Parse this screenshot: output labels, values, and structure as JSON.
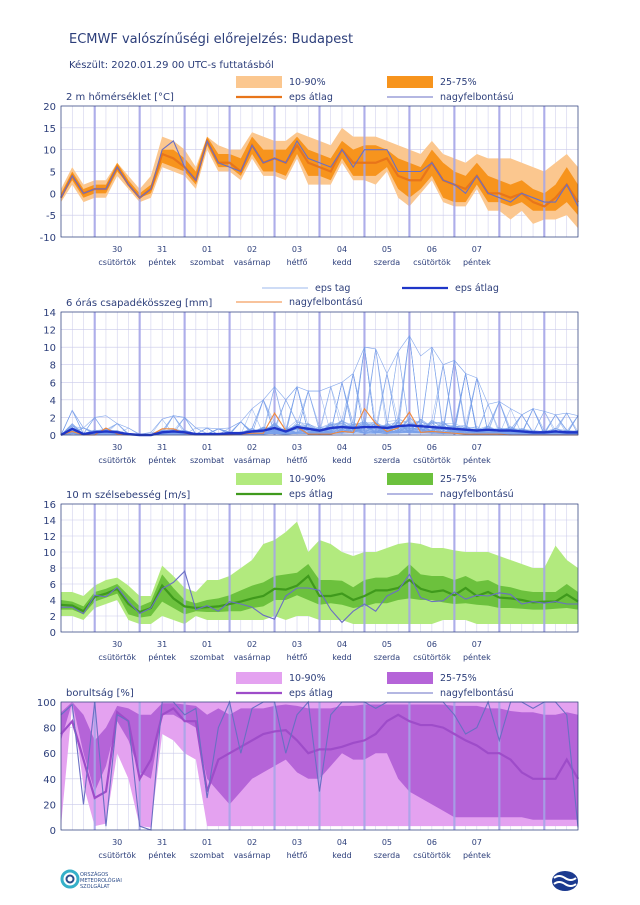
{
  "header": {
    "title": "ECMWF valószínűségi előrejelzés: Budapest",
    "subtitle": "Készült: 2020.01.29 00 UTC-s futtatásból"
  },
  "footer": {
    "left_logo_text": [
      "ORSZÁGOS",
      "METEOROLÓGIAI",
      "SZOLGÁLAT"
    ]
  },
  "colors": {
    "temp_band_outer": "#fbc78f",
    "temp_band_inner": "#f7941d",
    "temp_mean": "#e8751a",
    "hires_line": "#6a6fc4",
    "precip_members": "#5d8fe8",
    "precip_mean": "#1f36c8",
    "precip_hires": "#f0873a",
    "wind_band_outer": "#b2ea7e",
    "wind_band_inner": "#6cc13d",
    "wind_mean": "#3f9a1c",
    "cloud_band_outer": "#e4a2f0",
    "cloud_band_inner": "#b564d8",
    "cloud_mean": "#9e4cc9",
    "grid": "#c9c9ea",
    "day_separator": "#a5a5e8"
  },
  "chart_data": [
    {
      "type": "area",
      "title": "2 m hőmérséklet [°C]",
      "ylim": [
        -10,
        20
      ],
      "yticks": [
        -10,
        -5,
        0,
        5,
        10,
        15,
        20
      ],
      "legend": [
        {
          "label": "10-90%",
          "kind": "band",
          "color": "#fbc78f"
        },
        {
          "label": "25-75%",
          "kind": "band",
          "color": "#f7941d"
        },
        {
          "label": "eps átlag",
          "kind": "line",
          "color": "#e8751a"
        },
        {
          "label": "nagyfelbontású",
          "kind": "line",
          "color": "#6a6fc4"
        }
      ],
      "series": {
        "p10": [
          -2,
          2,
          -2,
          -1,
          -1,
          4,
          1,
          -2,
          -1,
          6,
          5,
          4,
          1,
          10,
          5,
          5,
          3,
          8,
          4,
          4,
          3,
          8,
          2,
          2,
          2,
          7,
          3,
          3,
          2,
          5,
          -1,
          -3,
          0,
          3,
          -2,
          -3,
          -3,
          1,
          -4,
          -4,
          -6,
          -4,
          -7,
          -6,
          -6,
          -5,
          -8
        ],
        "p25": [
          -1,
          3,
          -1,
          0,
          0,
          5,
          2,
          -1,
          0,
          7,
          6,
          5,
          2,
          11,
          6,
          6,
          4,
          9,
          5,
          5,
          4,
          9,
          4,
          4,
          3,
          8,
          4,
          4,
          4,
          6,
          1,
          -1,
          1,
          4,
          -1,
          -2,
          -2,
          2,
          -2,
          -2,
          -3,
          -2,
          -4,
          -4,
          -4,
          -2,
          -5
        ],
        "mean": [
          -1,
          4,
          0,
          1,
          1,
          6,
          2,
          -1,
          1,
          9,
          8,
          6,
          3,
          12,
          7,
          7,
          5,
          11,
          7,
          8,
          7,
          11,
          7,
          6,
          5,
          10,
          7,
          7,
          7,
          8,
          4,
          3,
          3,
          7,
          3,
          2,
          1,
          4,
          0,
          0,
          -1,
          0,
          -2,
          -3,
          -1,
          2,
          -2
        ],
        "p75": [
          0,
          5,
          1,
          2,
          2,
          7,
          3,
          0,
          2,
          10,
          10,
          8,
          5,
          13,
          9,
          9,
          8,
          13,
          10,
          10,
          10,
          13,
          10,
          9,
          8,
          12,
          10,
          11,
          11,
          10,
          8,
          7,
          6,
          10,
          7,
          5,
          4,
          7,
          4,
          3,
          2,
          3,
          1,
          0,
          2,
          6,
          2
        ],
        "p90": [
          1,
          6,
          2,
          3,
          3,
          7,
          4,
          1,
          4,
          13,
          12,
          10,
          6,
          13,
          11,
          10,
          10,
          14,
          13,
          12,
          12,
          14,
          13,
          12,
          11,
          15,
          13,
          13,
          13,
          12,
          11,
          10,
          9,
          12,
          9,
          8,
          7,
          9,
          8,
          8,
          8,
          7,
          6,
          5,
          7,
          9,
          6
        ],
        "hires": [
          -1,
          4,
          0,
          1,
          1,
          6,
          2,
          -1,
          1,
          10,
          12,
          6,
          3,
          12,
          7,
          6,
          5,
          11,
          7,
          8,
          7,
          12,
          8,
          7,
          6,
          10,
          6,
          10,
          10,
          10,
          5,
          5,
          5,
          7,
          3,
          2,
          0,
          4,
          0,
          -1,
          -2,
          0,
          -1,
          -2,
          -2,
          2,
          -3
        ]
      },
      "x_day_labels": [
        {
          "day": "30",
          "weekday": "csütörtök"
        },
        {
          "day": "31",
          "weekday": "péntek"
        },
        {
          "day": "01",
          "weekday": "szombat"
        },
        {
          "day": "02",
          "weekday": "vasárnap"
        },
        {
          "day": "03",
          "weekday": "hétfő"
        },
        {
          "day": "04",
          "weekday": "kedd"
        },
        {
          "day": "05",
          "weekday": "szerda"
        },
        {
          "day": "06",
          "weekday": "csütörtök"
        },
        {
          "day": "07",
          "weekday": "péntek"
        }
      ]
    },
    {
      "type": "line",
      "title": "6 órás csapadékösszeg [mm]",
      "ylim": [
        0,
        14
      ],
      "yticks": [
        0,
        2,
        4,
        6,
        8,
        10,
        12,
        14
      ],
      "legend": [
        {
          "label": "eps tag",
          "kind": "line",
          "color": "#9cb8ee"
        },
        {
          "label": "eps átlag",
          "kind": "line",
          "color": "#1f36c8"
        },
        {
          "label": "nagyfelbontású",
          "kind": "line",
          "color": "#f0873a"
        }
      ],
      "series": {
        "mean": [
          0,
          0.7,
          0.1,
          0.3,
          0.4,
          0.3,
          0.1,
          0,
          0,
          0.3,
          0.4,
          0.3,
          0.1,
          0.1,
          0.1,
          0.2,
          0.2,
          0.4,
          0.5,
          0.8,
          0.4,
          0.9,
          0.7,
          0.5,
          0.8,
          0.9,
          0.8,
          0.9,
          0.9,
          0.8,
          1.0,
          1.1,
          1.0,
          0.9,
          0.8,
          0.7,
          0.6,
          0.5,
          0.6,
          0.5,
          0.5,
          0.4,
          0.3,
          0.3,
          0.4,
          0.3,
          0.3
        ],
        "max_member": [
          0,
          2.8,
          0.8,
          2,
          2.2,
          1.3,
          0.8,
          0.1,
          0.3,
          1.8,
          2.2,
          2,
          0.8,
          0.8,
          0.7,
          0.8,
          1.5,
          3,
          4,
          5.5,
          4,
          5.5,
          5,
          5,
          5.5,
          6,
          7,
          10,
          9.8,
          7,
          9.5,
          11.3,
          9,
          10,
          8,
          8.5,
          7,
          6.5,
          3.5,
          3.8,
          3,
          2.3,
          3,
          2.7,
          2.3,
          2.5,
          2.2
        ],
        "hires": [
          0,
          0.4,
          0,
          0,
          0.8,
          0.1,
          0,
          0,
          0,
          0.7,
          0.7,
          0.2,
          0,
          0,
          0,
          0,
          0.1,
          0.2,
          0.2,
          2.5,
          0.5,
          0.9,
          0.1,
          0.1,
          0.1,
          0.4,
          0.3,
          3.0,
          1.3,
          0.4,
          0.8,
          2.6,
          0.3,
          0.4,
          0.3,
          0.2,
          0.1,
          0.1,
          0.1,
          0.1,
          0,
          0,
          0,
          0,
          0,
          0,
          0
        ]
      },
      "members_shown": 50
    },
    {
      "type": "area",
      "title": "10 m szélsebesség [m/s]",
      "ylim": [
        0,
        16
      ],
      "yticks": [
        0,
        2,
        4,
        6,
        8,
        10,
        12,
        14,
        16
      ],
      "legend": [
        {
          "label": "10-90%",
          "kind": "band",
          "color": "#b2ea7e"
        },
        {
          "label": "25-75%",
          "kind": "band",
          "color": "#6cc13d"
        },
        {
          "label": "eps átlag",
          "kind": "line",
          "color": "#3f9a1c"
        },
        {
          "label": "nagyfelbontású",
          "kind": "line",
          "color": "#6a6fc4"
        }
      ],
      "series": {
        "p10": [
          2,
          2,
          1.5,
          3,
          3.5,
          4,
          1.5,
          1,
          1,
          2,
          1.5,
          1,
          2,
          1.5,
          1.5,
          1.5,
          1.5,
          1.5,
          1.5,
          2,
          1.5,
          2,
          2,
          1.5,
          1.5,
          1.5,
          1,
          1,
          1,
          1,
          1,
          1,
          1,
          1,
          1.5,
          1.5,
          1.5,
          1,
          1,
          1,
          1,
          1,
          1,
          1,
          1,
          1,
          1
        ],
        "p25": [
          2.8,
          2.8,
          2.2,
          3.8,
          4.3,
          4.8,
          2.2,
          1.8,
          2,
          3.8,
          3,
          2.2,
          2.6,
          2.5,
          2.5,
          2.6,
          2.6,
          3,
          3.2,
          4,
          4,
          4.6,
          4,
          3.4,
          3.6,
          3.4,
          3,
          3.2,
          3.6,
          3.6,
          4,
          4.2,
          4,
          4,
          3.7,
          3.5,
          3.6,
          3.4,
          3.3,
          3,
          3,
          2.9,
          2.8,
          2.8,
          2.9,
          3,
          2.8
        ],
        "mean": [
          3.4,
          3.3,
          2.6,
          4.4,
          4.8,
          5.4,
          3.5,
          2.5,
          3,
          5.8,
          4.2,
          3.2,
          3,
          3.1,
          3.2,
          3.5,
          3.8,
          4.2,
          4.5,
          5.4,
          5.3,
          5.8,
          7,
          4.5,
          4.5,
          4.8,
          4,
          4.5,
          5.2,
          5.2,
          5.5,
          6.5,
          5.4,
          5,
          5.2,
          4.6,
          5.5,
          4.5,
          5,
          4.3,
          4.2,
          4.0,
          3.7,
          3.8,
          3.8,
          4.7,
          3.8
        ],
        "p75": [
          4,
          3.8,
          3.2,
          5,
          5.4,
          6,
          4.6,
          3.2,
          3.8,
          7.2,
          5.5,
          4,
          3.6,
          4,
          4.2,
          4.6,
          5.2,
          5.8,
          6.2,
          7,
          7.2,
          7.4,
          8.5,
          6.5,
          6.5,
          6.4,
          5.6,
          6.5,
          6.8,
          6.8,
          7.2,
          8.5,
          7.2,
          7,
          7,
          6.5,
          7,
          6.3,
          6.5,
          5.8,
          5.6,
          5.2,
          5,
          5,
          5,
          6,
          5
        ],
        "p90": [
          5,
          5,
          4.5,
          5.8,
          6.5,
          6.8,
          5.8,
          4.5,
          4.5,
          8.3,
          7,
          5.5,
          5,
          6.5,
          6.5,
          7,
          8,
          9,
          11,
          11.5,
          12.5,
          13.8,
          10,
          11.5,
          11,
          10,
          9.5,
          10,
          10,
          10.5,
          11,
          11.2,
          11,
          10.5,
          10.5,
          10.2,
          10,
          10,
          10,
          9.5,
          9,
          8.5,
          8,
          8,
          10.8,
          9,
          8
        ]
      },
      "hires": [
        3.1,
        3.1,
        2.3,
        4.6,
        4.4,
        5.6,
        3.8,
        2.3,
        3,
        5.4,
        6.2,
        7.6,
        2.8,
        3.3,
        2.6,
        3.8,
        3.5,
        3.1,
        2.1,
        1.6,
        4.5,
        5.5,
        5.5,
        5.2,
        2.8,
        1.2,
        2.6,
        3.5,
        2.6,
        4.5,
        5.2,
        7.2,
        4.3,
        3.8,
        3.9,
        5,
        4.1,
        4.6,
        4.5,
        4.9,
        4.7,
        3.5,
        3.8,
        3.6,
        3.8,
        3.5,
        3.5
      ]
    },
    {
      "type": "area",
      "title": "borultság [%]",
      "ylim": [
        0,
        100
      ],
      "yticks": [
        0,
        20,
        40,
        60,
        80,
        100
      ],
      "legend": [
        {
          "label": "10-90%",
          "kind": "band",
          "color": "#e4a2f0"
        },
        {
          "label": "25-75%",
          "kind": "band",
          "color": "#b564d8"
        },
        {
          "label": "eps átlag",
          "kind": "line",
          "color": "#9e4cc9"
        },
        {
          "label": "nagyfelbontású",
          "kind": "line",
          "color": "#6a6fc4"
        }
      ],
      "series": {
        "p10": [
          3,
          98,
          35,
          3,
          5,
          60,
          40,
          3,
          2,
          75,
          70,
          60,
          55,
          3,
          3,
          3,
          3,
          3,
          3,
          3,
          3,
          3,
          3,
          3,
          3,
          3,
          3,
          3,
          3,
          3,
          3,
          3,
          3,
          3,
          3,
          3,
          3,
          3,
          3,
          3,
          3,
          3,
          3,
          3,
          3,
          3,
          3
        ],
        "p25": [
          70,
          100,
          60,
          30,
          50,
          85,
          70,
          45,
          40,
          90,
          90,
          85,
          80,
          40,
          30,
          20,
          30,
          40,
          45,
          50,
          55,
          45,
          40,
          40,
          50,
          60,
          55,
          55,
          60,
          60,
          40,
          30,
          25,
          20,
          15,
          10,
          10,
          10,
          10,
          10,
          10,
          10,
          8,
          8,
          8,
          8,
          8
        ],
        "mean": [
          75,
          85,
          55,
          25,
          30,
          92,
          85,
          40,
          55,
          90,
          95,
          85,
          85,
          30,
          55,
          60,
          65,
          70,
          75,
          77,
          78,
          70,
          60,
          63,
          63,
          65,
          68,
          70,
          75,
          85,
          90,
          85,
          82,
          82,
          80,
          75,
          70,
          66,
          60,
          60,
          55,
          45,
          40,
          40,
          40,
          55,
          40
        ],
        "p75": [
          92,
          100,
          90,
          70,
          80,
          97,
          95,
          90,
          90,
          99,
          99,
          98,
          97,
          90,
          95,
          90,
          95,
          95,
          95,
          97,
          98,
          97,
          95,
          95,
          95,
          97,
          97,
          98,
          98,
          98,
          98,
          98,
          98,
          98,
          98,
          97,
          97,
          97,
          95,
          95,
          93,
          92,
          92,
          90,
          90,
          92,
          90
        ],
        "p90": [
          100,
          100,
          100,
          100,
          100,
          100,
          100,
          100,
          100,
          100,
          100,
          100,
          100,
          100,
          100,
          100,
          100,
          100,
          100,
          100,
          100,
          100,
          100,
          100,
          100,
          100,
          100,
          100,
          100,
          100,
          100,
          100,
          100,
          100,
          100,
          100,
          100,
          100,
          100,
          100,
          100,
          100,
          100,
          100,
          100,
          100,
          100
        ]
      },
      "hires": [
        90,
        98,
        20,
        100,
        3,
        90,
        85,
        3,
        0,
        100,
        100,
        90,
        95,
        25,
        80,
        100,
        60,
        95,
        100,
        100,
        60,
        90,
        100,
        30,
        90,
        100,
        100,
        100,
        95,
        100,
        100,
        100,
        100,
        100,
        100,
        90,
        75,
        80,
        100,
        70,
        100,
        100,
        95,
        100,
        100,
        90,
        2
      ]
    }
  ]
}
